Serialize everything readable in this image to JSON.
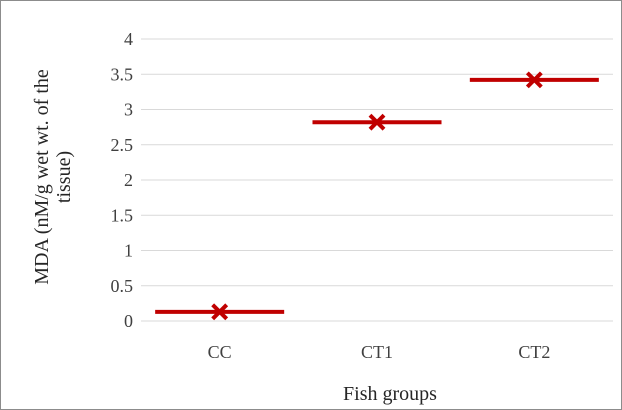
{
  "chart_data": {
    "type": "scatter",
    "xlabel": "Fish groups",
    "ylabel_lines": [
      "MDA (nM/g wet wt. of the",
      "tissue)"
    ],
    "categories": [
      "CC",
      "CT1",
      "CT2"
    ],
    "values": [
      0.13,
      2.82,
      3.42
    ],
    "ylim": [
      0,
      4
    ],
    "yticks": [
      "0",
      "0.5",
      "1",
      "1.5",
      "2",
      "2.5",
      "3",
      "3.5",
      "4"
    ],
    "grid": true,
    "legend": "none",
    "marker": "x with horizontal bar",
    "series_color": "#c00000",
    "grid_color": "#d9d9d9"
  }
}
